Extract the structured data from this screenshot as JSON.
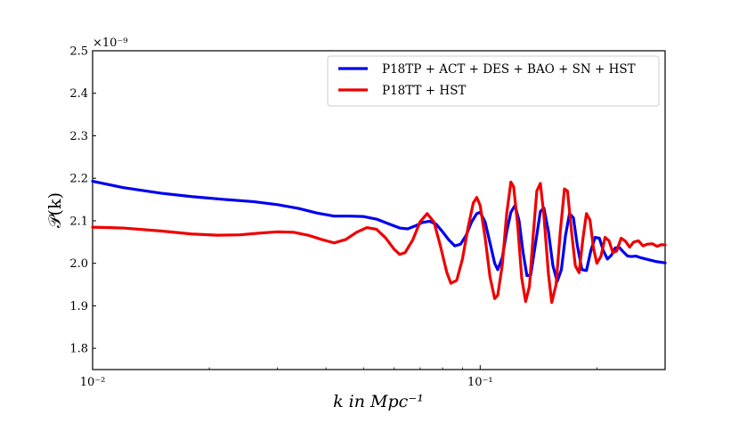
{
  "chart_data": {
    "type": "line",
    "title": "",
    "xlabel": "k in Mpc⁻¹",
    "ylabel": "𝒫(k)",
    "x_scale": "log",
    "xlim": [
      0.01,
      0.3
    ],
    "ylim": [
      1.75e-09,
      2.5e-09
    ],
    "y_offset_label": "×10⁻⁹",
    "x_ticks": [
      {
        "value": 0.01,
        "label": "10⁻²"
      },
      {
        "value": 0.1,
        "label": "10⁻¹"
      }
    ],
    "y_ticks": [
      {
        "value": 1.8,
        "label": "1.8"
      },
      {
        "value": 1.9,
        "label": "1.9"
      },
      {
        "value": 2.0,
        "label": "2.0"
      },
      {
        "value": 2.1,
        "label": "2.1"
      },
      {
        "value": 2.2,
        "label": "2.2"
      },
      {
        "value": 2.3,
        "label": "2.3"
      },
      {
        "value": 2.4,
        "label": "2.4"
      },
      {
        "value": 2.5,
        "label": "2.5"
      }
    ],
    "grid": false,
    "legend_position": "top-right",
    "series": [
      {
        "name": "P18TP + ACT + DES + BAO + SN + HST",
        "color": "#0000ee",
        "points": [
          [
            0.01,
            2.193
          ],
          [
            0.012,
            2.178
          ],
          [
            0.015,
            2.165
          ],
          [
            0.018,
            2.157
          ],
          [
            0.022,
            2.15
          ],
          [
            0.026,
            2.145
          ],
          [
            0.03,
            2.138
          ],
          [
            0.034,
            2.129
          ],
          [
            0.038,
            2.118
          ],
          [
            0.042,
            2.111
          ],
          [
            0.046,
            2.111
          ],
          [
            0.05,
            2.11
          ],
          [
            0.054,
            2.104
          ],
          [
            0.058,
            2.093
          ],
          [
            0.062,
            2.083
          ],
          [
            0.065,
            2.081
          ],
          [
            0.068,
            2.088
          ],
          [
            0.071,
            2.096
          ],
          [
            0.074,
            2.099
          ],
          [
            0.077,
            2.092
          ],
          [
            0.08,
            2.074
          ],
          [
            0.083,
            2.055
          ],
          [
            0.086,
            2.041
          ],
          [
            0.089,
            2.045
          ],
          [
            0.092,
            2.066
          ],
          [
            0.095,
            2.097
          ],
          [
            0.098,
            2.117
          ],
          [
            0.1,
            2.12
          ],
          [
            0.103,
            2.097
          ],
          [
            0.106,
            2.048
          ],
          [
            0.109,
            2.0
          ],
          [
            0.111,
            1.985
          ],
          [
            0.114,
            2.013
          ],
          [
            0.117,
            2.073
          ],
          [
            0.12,
            2.12
          ],
          [
            0.123,
            2.136
          ],
          [
            0.126,
            2.1
          ],
          [
            0.129,
            2.026
          ],
          [
            0.132,
            1.971
          ],
          [
            0.135,
            1.972
          ],
          [
            0.139,
            2.048
          ],
          [
            0.143,
            2.122
          ],
          [
            0.146,
            2.13
          ],
          [
            0.15,
            2.075
          ],
          [
            0.154,
            1.995
          ],
          [
            0.158,
            1.957
          ],
          [
            0.162,
            1.985
          ],
          [
            0.166,
            2.065
          ],
          [
            0.17,
            2.117
          ],
          [
            0.174,
            2.107
          ],
          [
            0.178,
            2.043
          ],
          [
            0.183,
            1.985
          ],
          [
            0.188,
            1.983
          ],
          [
            0.193,
            2.03
          ],
          [
            0.198,
            2.061
          ],
          [
            0.203,
            2.059
          ],
          [
            0.208,
            2.029
          ],
          [
            0.213,
            2.01
          ],
          [
            0.218,
            2.019
          ],
          [
            0.223,
            2.036
          ],
          [
            0.228,
            2.038
          ],
          [
            0.234,
            2.027
          ],
          [
            0.24,
            2.017
          ],
          [
            0.246,
            2.016
          ],
          [
            0.252,
            2.017
          ],
          [
            0.26,
            2.013
          ],
          [
            0.268,
            2.01
          ],
          [
            0.276,
            2.007
          ],
          [
            0.285,
            2.004
          ],
          [
            0.295,
            2.002
          ],
          [
            0.3,
            2.001
          ]
        ]
      },
      {
        "name": "P18TT + HST",
        "color": "#ee0000",
        "points": [
          [
            0.01,
            2.085
          ],
          [
            0.012,
            2.083
          ],
          [
            0.015,
            2.076
          ],
          [
            0.018,
            2.069
          ],
          [
            0.021,
            2.066
          ],
          [
            0.024,
            2.067
          ],
          [
            0.027,
            2.071
          ],
          [
            0.03,
            2.074
          ],
          [
            0.033,
            2.073
          ],
          [
            0.036,
            2.066
          ],
          [
            0.039,
            2.056
          ],
          [
            0.042,
            2.048
          ],
          [
            0.045,
            2.056
          ],
          [
            0.048,
            2.073
          ],
          [
            0.051,
            2.084
          ],
          [
            0.054,
            2.08
          ],
          [
            0.057,
            2.06
          ],
          [
            0.06,
            2.033
          ],
          [
            0.062,
            2.021
          ],
          [
            0.064,
            2.025
          ],
          [
            0.067,
            2.055
          ],
          [
            0.07,
            2.098
          ],
          [
            0.073,
            2.117
          ],
          [
            0.076,
            2.097
          ],
          [
            0.079,
            2.04
          ],
          [
            0.082,
            1.979
          ],
          [
            0.084,
            1.953
          ],
          [
            0.087,
            1.96
          ],
          [
            0.09,
            2.01
          ],
          [
            0.093,
            2.083
          ],
          [
            0.096,
            2.142
          ],
          [
            0.098,
            2.155
          ],
          [
            0.1,
            2.136
          ],
          [
            0.103,
            2.06
          ],
          [
            0.106,
            1.968
          ],
          [
            0.109,
            1.917
          ],
          [
            0.111,
            1.925
          ],
          [
            0.114,
            1.995
          ],
          [
            0.117,
            2.115
          ],
          [
            0.12,
            2.191
          ],
          [
            0.122,
            2.18
          ],
          [
            0.125,
            2.088
          ],
          [
            0.128,
            1.965
          ],
          [
            0.131,
            1.91
          ],
          [
            0.134,
            1.946
          ],
          [
            0.137,
            2.065
          ],
          [
            0.14,
            2.17
          ],
          [
            0.143,
            2.188
          ],
          [
            0.146,
            2.113
          ],
          [
            0.15,
            1.975
          ],
          [
            0.153,
            1.908
          ],
          [
            0.157,
            1.95
          ],
          [
            0.161,
            2.076
          ],
          [
            0.165,
            2.175
          ],
          [
            0.168,
            2.17
          ],
          [
            0.172,
            2.076
          ],
          [
            0.176,
            1.994
          ],
          [
            0.18,
            1.978
          ],
          [
            0.184,
            2.056
          ],
          [
            0.188,
            2.117
          ],
          [
            0.192,
            2.102
          ],
          [
            0.196,
            2.036
          ],
          [
            0.2,
            2.0
          ],
          [
            0.205,
            2.017
          ],
          [
            0.21,
            2.061
          ],
          [
            0.215,
            2.053
          ],
          [
            0.22,
            2.025
          ],
          [
            0.225,
            2.029
          ],
          [
            0.231,
            2.059
          ],
          [
            0.237,
            2.052
          ],
          [
            0.243,
            2.038
          ],
          [
            0.249,
            2.05
          ],
          [
            0.256,
            2.053
          ],
          [
            0.263,
            2.041
          ],
          [
            0.27,
            2.045
          ],
          [
            0.278,
            2.046
          ],
          [
            0.286,
            2.04
          ],
          [
            0.294,
            2.044
          ],
          [
            0.3,
            2.043
          ]
        ]
      }
    ]
  }
}
